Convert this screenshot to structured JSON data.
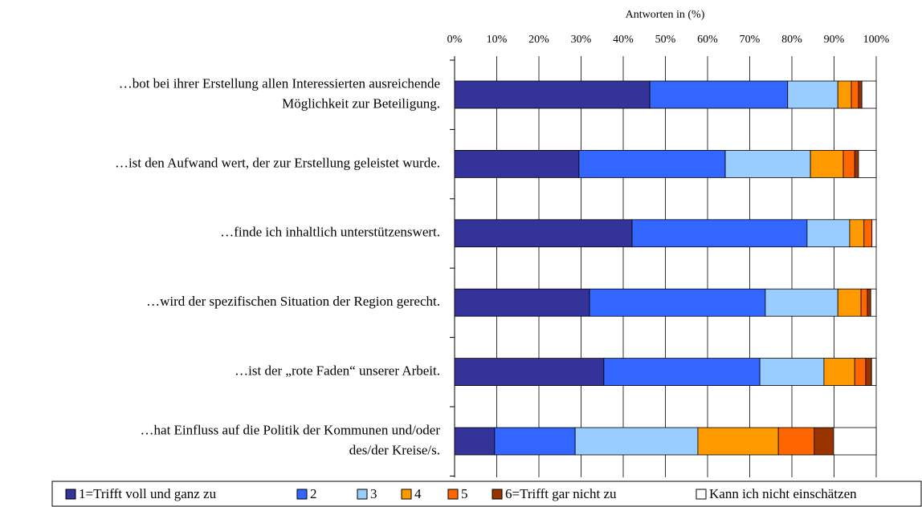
{
  "chart_data": {
    "type": "stacked-barh",
    "xlabel": "Antworten in (%)",
    "categories": [
      [
        "…bot bei ihrer Erstellung allen Interessierten ausreichende",
        "Möglichkeit zur Beteiligung."
      ],
      [
        "…ist den Aufwand wert, der zur Erstellung geleistet wurde."
      ],
      [
        "…finde ich inhaltlich unterstützenswert."
      ],
      [
        "…wird der spezifischen Situation der Region gerecht."
      ],
      [
        "…ist der „rote Faden“ unserer Arbeit."
      ],
      [
        "…hat Einfluss auf die Politik der Kommunen und/oder",
        "des/der Kreise/s."
      ]
    ],
    "series": [
      {
        "name": "1=Trifft voll und ganz zu",
        "color": "#333399",
        "values": [
          46.3,
          29.5,
          42.1,
          32.0,
          35.4,
          9.5
        ]
      },
      {
        "name": "2",
        "color": "#3366ff",
        "values": [
          32.7,
          34.7,
          41.5,
          41.7,
          37.0,
          19.1
        ]
      },
      {
        "name": "3",
        "color": "#99ccff",
        "values": [
          11.9,
          20.2,
          10.1,
          17.2,
          15.2,
          29.1
        ]
      },
      {
        "name": "4",
        "color": "#ff9900",
        "values": [
          3.2,
          7.8,
          3.4,
          5.5,
          7.3,
          19.1
        ]
      },
      {
        "name": "5",
        "color": "#ff6600",
        "values": [
          1.7,
          2.7,
          1.9,
          1.5,
          2.6,
          8.5
        ]
      },
      {
        "name": "6=Trifft gar nicht zu",
        "color": "#993300",
        "values": [
          0.8,
          0.9,
          0,
          0.8,
          1.4,
          4.6
        ]
      },
      {
        "name": "Kann ich nicht einschätzen",
        "color": "#ffffff",
        "values": [
          3.4,
          4.2,
          1.0,
          1.3,
          1.1,
          10.1
        ]
      }
    ],
    "xlim": [
      0,
      100
    ],
    "xticks": [
      {
        "value": 0,
        "label": "0%"
      },
      {
        "value": 10,
        "label": "10%"
      },
      {
        "value": 20,
        "label": "20%"
      },
      {
        "value": 30,
        "label": "30%"
      },
      {
        "value": 40,
        "label": "40%"
      },
      {
        "value": 50,
        "label": "50%"
      },
      {
        "value": 60,
        "label": "60%"
      },
      {
        "value": 70,
        "label": "70%"
      },
      {
        "value": 80,
        "label": "80%"
      },
      {
        "value": 90,
        "label": "90%"
      },
      {
        "value": 100,
        "label": "100%"
      }
    ],
    "grid": true,
    "legend": "bottom"
  }
}
